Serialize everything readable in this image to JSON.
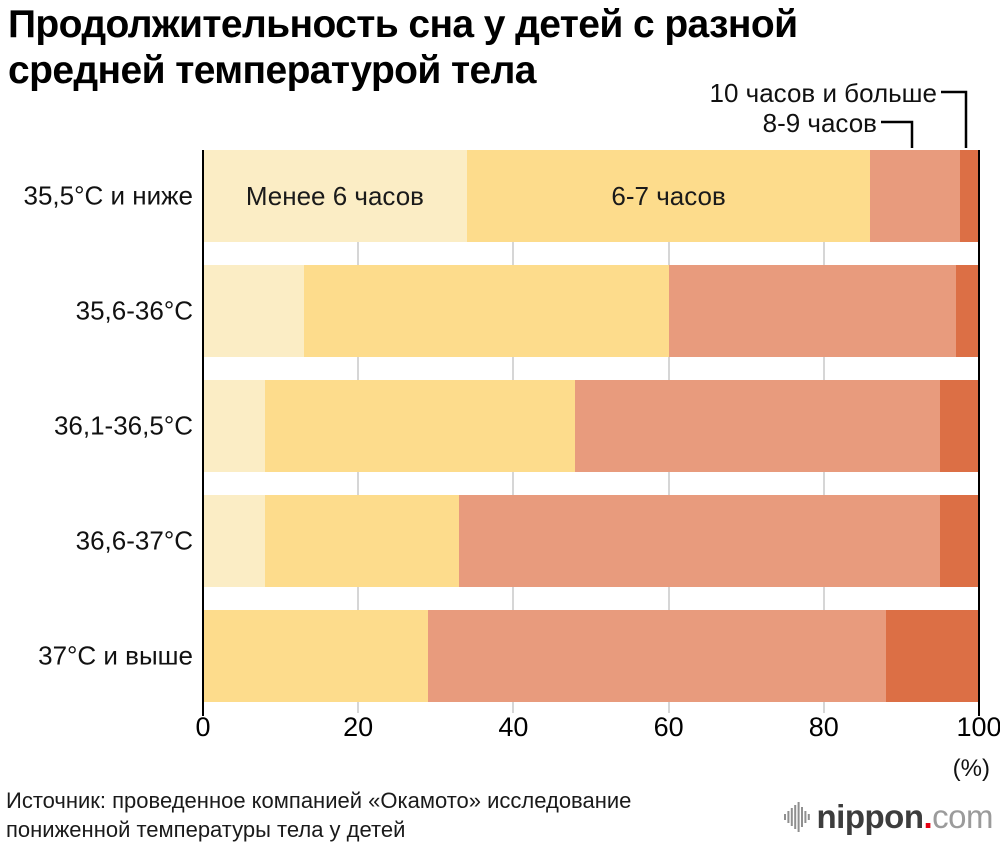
{
  "title": {
    "line1": "Продолжительность сна у детей с разной",
    "line2": "средней температурой тела"
  },
  "chart_data": {
    "type": "bar",
    "stacked": true,
    "orientation": "horizontal",
    "unit": "%",
    "title": "Продолжительность сна у детей с разной средней температурой тела",
    "categories": [
      "35,5°C и ниже",
      "35,6-36°C",
      "36,1-36,5°C",
      "36,6-37°C",
      "37°C и выше"
    ],
    "series": [
      {
        "name": "Менее 6 часов",
        "color": "#FBEDC5",
        "values": [
          34,
          13,
          8,
          8,
          0
        ]
      },
      {
        "name": "6-7 часов",
        "color": "#FDDC8C",
        "values": [
          52,
          47,
          40,
          25,
          29
        ]
      },
      {
        "name": "8-9 часов",
        "color": "#E89B7D",
        "values": [
          11.5,
          37,
          47,
          62,
          59
        ]
      },
      {
        "name": "10 часов и больше",
        "color": "#DC6F45",
        "values": [
          2.5,
          3,
          5,
          5,
          12
        ]
      }
    ],
    "xlabel": "(%)",
    "xticks": [
      0,
      20,
      40,
      60,
      80,
      100
    ],
    "xlim": [
      0,
      100
    ],
    "grid": "vertical-light-gray",
    "legend_position": "labels-in-first-bar-and-callouts"
  },
  "annotations": {
    "ten_plus": "10 часов и больше",
    "eight_nine": "8-9 часов"
  },
  "inbar": {
    "less6": "Менее 6 часов",
    "six7": "6-7 часов"
  },
  "axis": {
    "percent_label": "(%)"
  },
  "source": {
    "line1": "Источник: проведенное компанией «Окамото» исследование",
    "line2": "пониженной температуры тела у детей"
  },
  "logo": {
    "name": "nippon",
    "dot": ".",
    "tld": "com"
  }
}
